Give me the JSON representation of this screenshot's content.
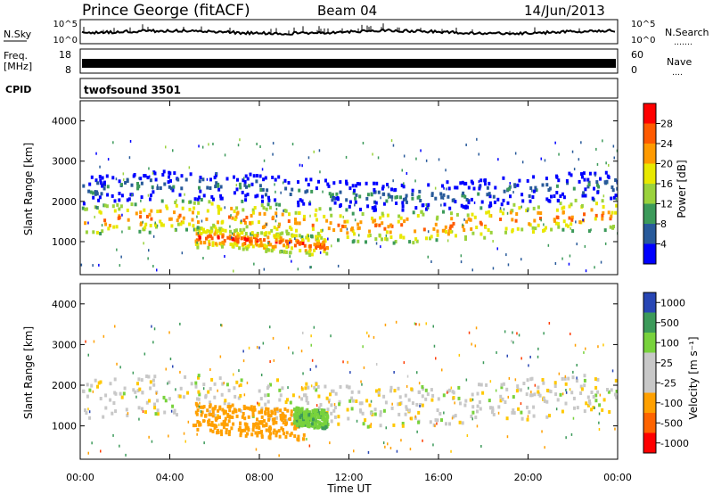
{
  "header": {
    "station": "Prince George (fitACF)",
    "beam": "Beam 04",
    "date": "14/Jun/2013"
  },
  "noise_panel": {
    "left_label": "N.Sky",
    "right_label": "N.Search",
    "left_ticks": [
      "10^5",
      "10^0"
    ],
    "right_ticks": [
      "10^5",
      "10^0"
    ],
    "right_dots": "……."
  },
  "freq_panel": {
    "left_label_top": "Freq.",
    "left_label_bottom": "[MHz]",
    "left_ticks": [
      "18",
      "8"
    ],
    "right_label": "Nave",
    "right_ticks": [
      "60",
      "0"
    ],
    "right_dots": "…."
  },
  "cpid_panel": {
    "label": "CPID",
    "program": "twofsound 3501"
  },
  "chart_data": [
    {
      "type": "heatmap",
      "panel": "power",
      "ylabel": "Slant Range [km]",
      "yticks": [
        "4000",
        "3000",
        "2000",
        "1000"
      ],
      "ylim": [
        180,
        4500
      ],
      "colorbar_label": "Power [dB]",
      "colorbar_ticks": [
        "28",
        "24",
        "20",
        "16",
        "12",
        "8",
        "4"
      ],
      "colorbar_colors": [
        "#ff0000",
        "#ff5a00",
        "#ff9a00",
        "#e8e800",
        "#9ad23c",
        "#3c9a5a",
        "#285a9a",
        "#0000ff"
      ],
      "echo_bands": [
        {
          "start_h": 0,
          "end_h": 24,
          "range_km": [
            1100,
            1900
          ],
          "peak_db": 26
        },
        {
          "start_h": 5,
          "end_h": 11,
          "range_km": [
            700,
            1200
          ],
          "peak_db": 28
        },
        {
          "start_h": 0,
          "end_h": 24,
          "range_km": [
            1900,
            2600
          ],
          "peak_db": 10
        }
      ]
    },
    {
      "type": "heatmap",
      "panel": "velocity",
      "ylabel": "Slant Range [km]",
      "yticks": [
        "4000",
        "3000",
        "2000",
        "1000"
      ],
      "ylim": [
        180,
        4500
      ],
      "colorbar_label": "Velocity [m s⁻¹]",
      "colorbar_ticks": [
        "1000",
        "500",
        "100",
        "25",
        "-25",
        "-100",
        "-500",
        "-1000"
      ],
      "colorbar_colors": [
        "#2846b4",
        "#3c9a5a",
        "#78d23c",
        "#c8c8c8",
        "#c8c8c8",
        "#ffa000",
        "#ff6400",
        "#ff0000"
      ],
      "echo_bands": [
        {
          "start_h": 0,
          "end_h": 24,
          "range_km": [
            1100,
            2100
          ],
          "velocity_ms": 0
        },
        {
          "start_h": 5,
          "end_h": 10,
          "range_km": [
            650,
            1400
          ],
          "velocity_ms": -150
        },
        {
          "start_h": 9.5,
          "end_h": 11,
          "range_km": [
            1000,
            1450
          ],
          "velocity_ms": 80
        }
      ]
    }
  ],
  "xaxis": {
    "label": "Time UT",
    "ticks": [
      "00:00",
      "04:00",
      "08:00",
      "12:00",
      "16:00",
      "20:00",
      "00:00"
    ]
  }
}
